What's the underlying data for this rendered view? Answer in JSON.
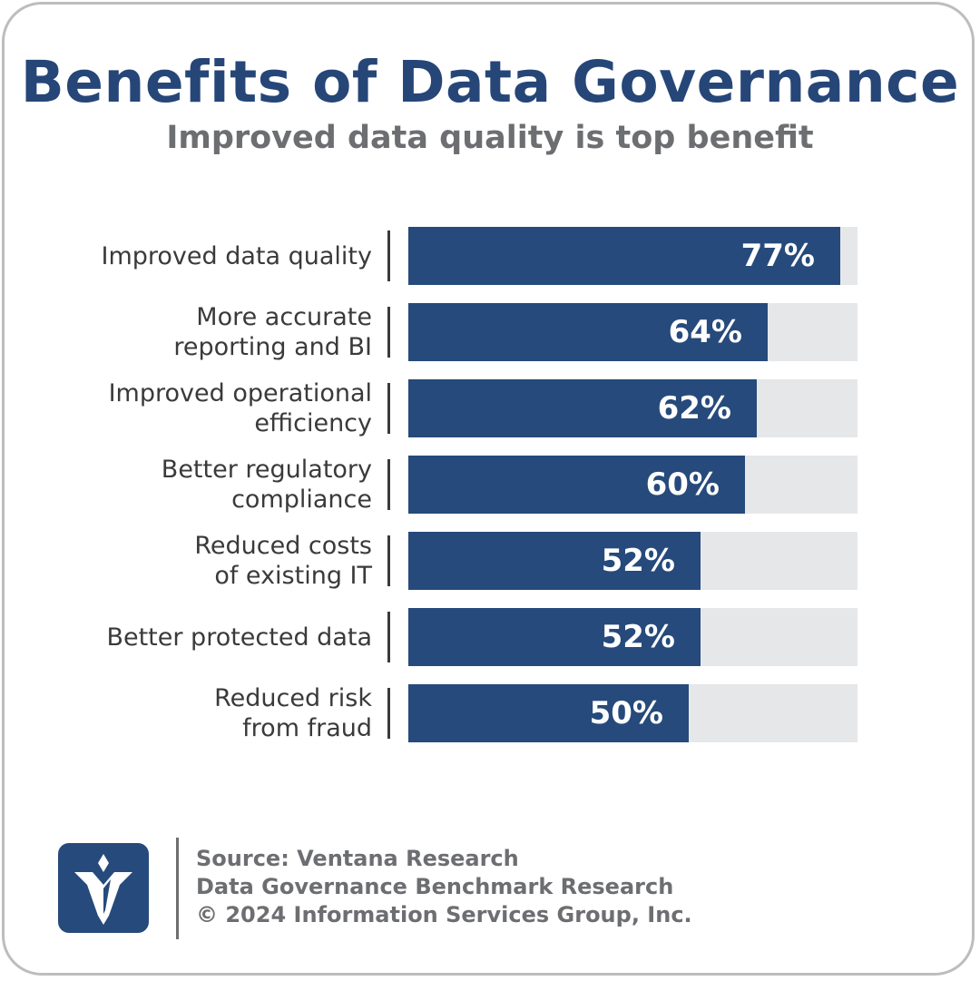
{
  "header": {
    "title": "Benefits of Data Governance",
    "subtitle": "Improved data quality is top benefit"
  },
  "colors": {
    "bar": "#264a7b",
    "track": "#e6e7e9",
    "title": "#264678",
    "muted": "#6d6e71"
  },
  "chart_data": {
    "type": "bar",
    "orientation": "horizontal",
    "title": "Benefits of Data Governance",
    "subtitle": "Improved data quality is top benefit",
    "categories": [
      [
        "Improved data quality"
      ],
      [
        "More accurate",
        "reporting and BI"
      ],
      [
        "Improved operational",
        "efficiency"
      ],
      [
        "Better regulatory",
        "compliance"
      ],
      [
        "Reduced costs",
        "of existing IT"
      ],
      [
        "Better protected data"
      ],
      [
        "Reduced risk",
        "from fraud"
      ]
    ],
    "values": [
      77,
      64,
      62,
      60,
      52,
      52,
      50
    ],
    "value_labels": [
      "77%",
      "64%",
      "62%",
      "60%",
      "52%",
      "52%",
      "50%"
    ],
    "xlim": [
      0,
      80
    ],
    "grid": false,
    "legend": "none"
  },
  "footer": {
    "logo_icon": "ventana-logo-icon",
    "lines": [
      "Source: Ventana Research",
      "Data Governance Benchmark Research",
      "© 2024 Information Services Group, Inc."
    ]
  }
}
